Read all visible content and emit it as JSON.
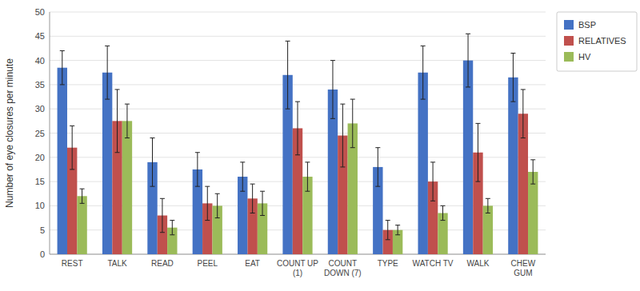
{
  "chart_data": {
    "type": "bar",
    "categories": [
      "REST",
      "TALK",
      "READ",
      "PEEL",
      "EAT",
      "COUNT UP\n(1)",
      "COUNT\nDOWN (7)",
      "TYPE",
      "WATCH TV",
      "WALK",
      "CHEW\nGUM"
    ],
    "series": [
      {
        "name": "BSP",
        "color": "#4472C4",
        "values": [
          38.5,
          37.5,
          19.0,
          17.5,
          16.0,
          37.0,
          34.0,
          18.0,
          37.5,
          40.0,
          36.5
        ],
        "errors": [
          3.5,
          5.5,
          5.0,
          3.5,
          3.0,
          7.0,
          6.0,
          4.0,
          5.5,
          5.5,
          5.0
        ]
      },
      {
        "name": "RELATIVES",
        "color": "#C0504D",
        "values": [
          22.0,
          27.5,
          8.0,
          10.5,
          11.5,
          26.0,
          24.5,
          5.0,
          15.0,
          21.0,
          29.0
        ],
        "errors": [
          4.5,
          6.5,
          3.5,
          3.5,
          3.0,
          5.5,
          6.5,
          2.0,
          4.0,
          6.0,
          5.0
        ]
      },
      {
        "name": "HV",
        "color": "#9BBB59",
        "values": [
          12.0,
          27.5,
          5.5,
          10.0,
          10.5,
          16.0,
          27.0,
          5.0,
          8.5,
          10.0,
          17.0
        ],
        "errors": [
          1.5,
          3.5,
          1.5,
          2.5,
          2.5,
          3.0,
          5.0,
          1.0,
          1.5,
          1.5,
          2.5
        ]
      }
    ],
    "ylabel": "Number of eye closures per minute",
    "ylim": [
      0,
      50
    ],
    "yticks": [
      0,
      5,
      10,
      15,
      20,
      25,
      30,
      35,
      40,
      45,
      50
    ],
    "grid": true,
    "legend": "right"
  }
}
